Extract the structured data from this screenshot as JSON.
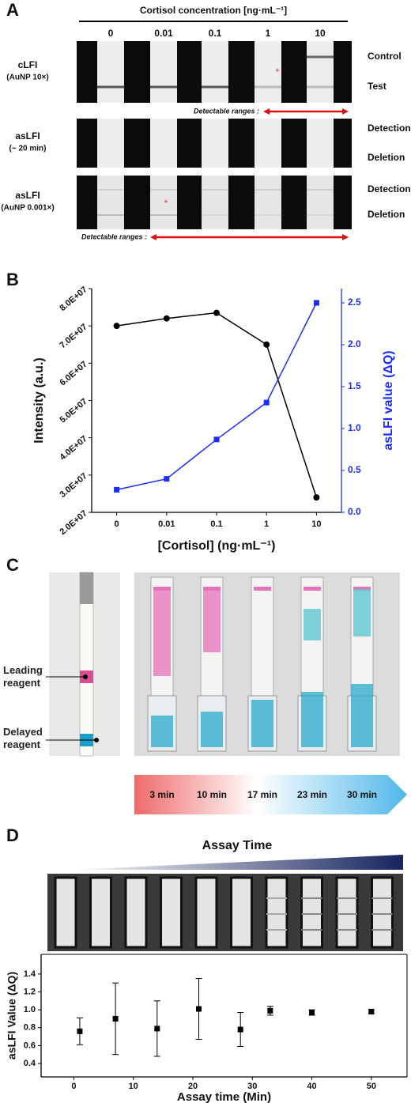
{
  "panel_labels": [
    "A",
    "B",
    "C",
    "D"
  ],
  "panel_a": {
    "title": "Cortisol concentration [ng·mL⁻¹]",
    "concentrations": [
      "0",
      "0.01",
      "0.1",
      "1",
      "10"
    ],
    "rows": [
      {
        "label": "cLFI",
        "sublabel": "(AuNP 10×)",
        "lines": [
          "Control",
          "Test"
        ]
      },
      {
        "label": "asLFI",
        "sublabel": "(~ 20 min)",
        "lines": [
          "Detection",
          "Deletion"
        ]
      },
      {
        "label": "asLFI",
        "sublabel": "(AuNP 0.001×)",
        "lines": [
          "Detection",
          "Deletion"
        ]
      }
    ],
    "ranges": [
      "Detectable ranges :",
      "Detectable ranges :"
    ],
    "markers": [
      "*",
      "*"
    ]
  },
  "panel_c": {
    "reagents": [
      "Leading reagent",
      "Delayed reagent"
    ],
    "times": [
      "3 min",
      "10 min",
      "17 min",
      "23 min",
      "30 min"
    ]
  },
  "panel_d": {
    "banner": "Assay Time"
  },
  "chart_data": [
    {
      "type": "line",
      "categories": [
        "0",
        "0.01",
        "0.1",
        "1",
        "10"
      ],
      "xlabel": "[Cortisol] (ng·mL⁻¹)",
      "ylabel": "Intensity (a.u.)",
      "y2label": "asLFI value (ΔQ)",
      "ylim": [
        20000000,
        80000000
      ],
      "yticks": [
        {
          "value": 20000000,
          "label": "2.0E+07"
        },
        {
          "value": 30000000,
          "label": "3.0E+07"
        },
        {
          "value": 40000000,
          "label": "4.0E+07"
        },
        {
          "value": 50000000,
          "label": "5.0E+07"
        },
        {
          "value": 60000000,
          "label": "6.0E+07"
        },
        {
          "value": 70000000,
          "label": "7.0E+07"
        },
        {
          "value": 80000000,
          "label": "8.0E+07"
        }
      ],
      "y2lim": [
        0,
        2.67
      ],
      "y2ticks": [
        {
          "value": 0,
          "label": "0.0"
        },
        0.5,
        {
          "value": 1,
          "label": "1.0"
        },
        1.5,
        {
          "value": 2,
          "label": "2.0"
        },
        2.5
      ],
      "series": [
        {
          "color": "#000000",
          "marker": "circle",
          "values": [
            70000000,
            72000000,
            73500000,
            65000000,
            24000000
          ]
        },
        {
          "color": "#1a2cff",
          "marker": "square",
          "axis": "y2",
          "values": [
            0.27,
            0.4,
            0.87,
            1.31,
            2.5
          ]
        }
      ]
    },
    {
      "type": "scatter",
      "xlabel": "Assay time (Min)",
      "ylabel": "asLFI Value (ΔQ)",
      "color": "#000000",
      "x": [
        1,
        7,
        14,
        21,
        28,
        33,
        40,
        50
      ],
      "values": [
        0.76,
        0.9,
        0.79,
        1.01,
        0.78,
        0.99,
        0.97,
        0.98
      ],
      "errors": [
        0.15,
        0.4,
        0.31,
        0.34,
        0.19,
        0.05,
        0.03,
        0.02
      ],
      "xlim": [
        -5.5,
        56
      ],
      "xticks": [
        0,
        10,
        20,
        30,
        40,
        50
      ],
      "ylim": [
        0.25,
        1.62
      ],
      "yticks": [
        0.4,
        0.6,
        0.8,
        {
          "value": 1,
          "label": "1.0"
        },
        1.2,
        1.4
      ]
    }
  ]
}
